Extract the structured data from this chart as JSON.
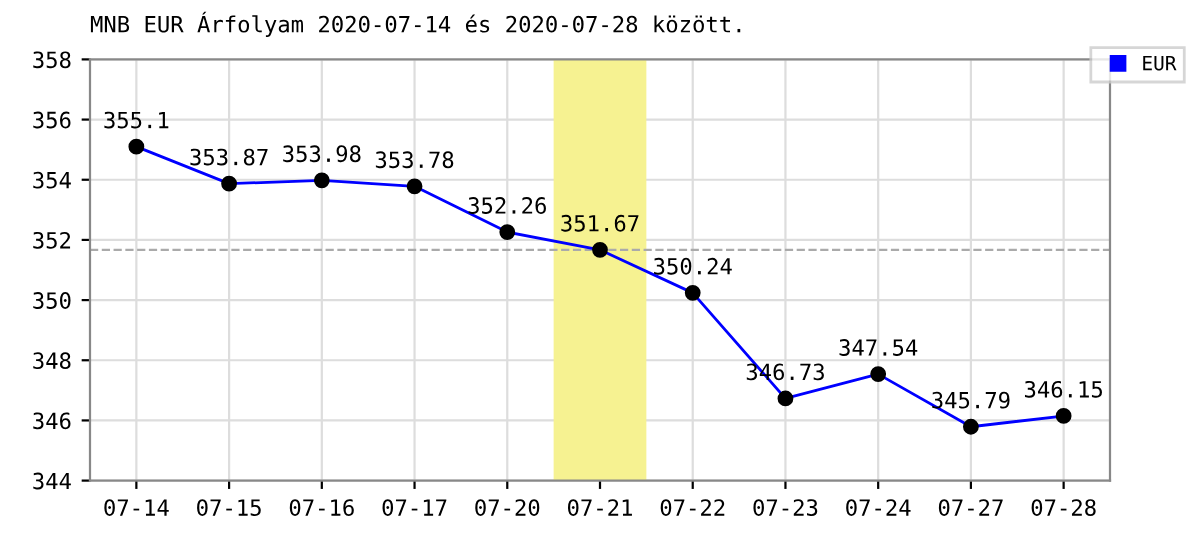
{
  "chart_data": {
    "type": "line",
    "title": "MNB EUR Árfolyam 2020-07-14 és 2020-07-28 között.",
    "categories": [
      "07-14",
      "07-15",
      "07-16",
      "07-17",
      "07-20",
      "07-21",
      "07-22",
      "07-23",
      "07-24",
      "07-27",
      "07-28"
    ],
    "series": [
      {
        "name": "EUR",
        "color": "#0000ff",
        "values": [
          355.1,
          353.87,
          353.98,
          353.78,
          352.26,
          351.67,
          350.24,
          346.73,
          347.54,
          345.79,
          346.15
        ]
      }
    ],
    "ylim": [
      344,
      358
    ],
    "yticks": [
      344,
      346,
      348,
      350,
      352,
      354,
      356,
      358
    ],
    "ref_lines": [
      {
        "axis": "y",
        "value": 351.67,
        "label": null,
        "color": "#aaaaaa",
        "line_style": "dashed"
      }
    ],
    "bands": [
      {
        "axis": "x",
        "from": "07-21",
        "to": "07-21",
        "label": null,
        "color": "#f6f291"
      }
    ],
    "grid": true,
    "legend": "top right",
    "marker": "circle",
    "line_style": "solid",
    "data_labels": true
  }
}
